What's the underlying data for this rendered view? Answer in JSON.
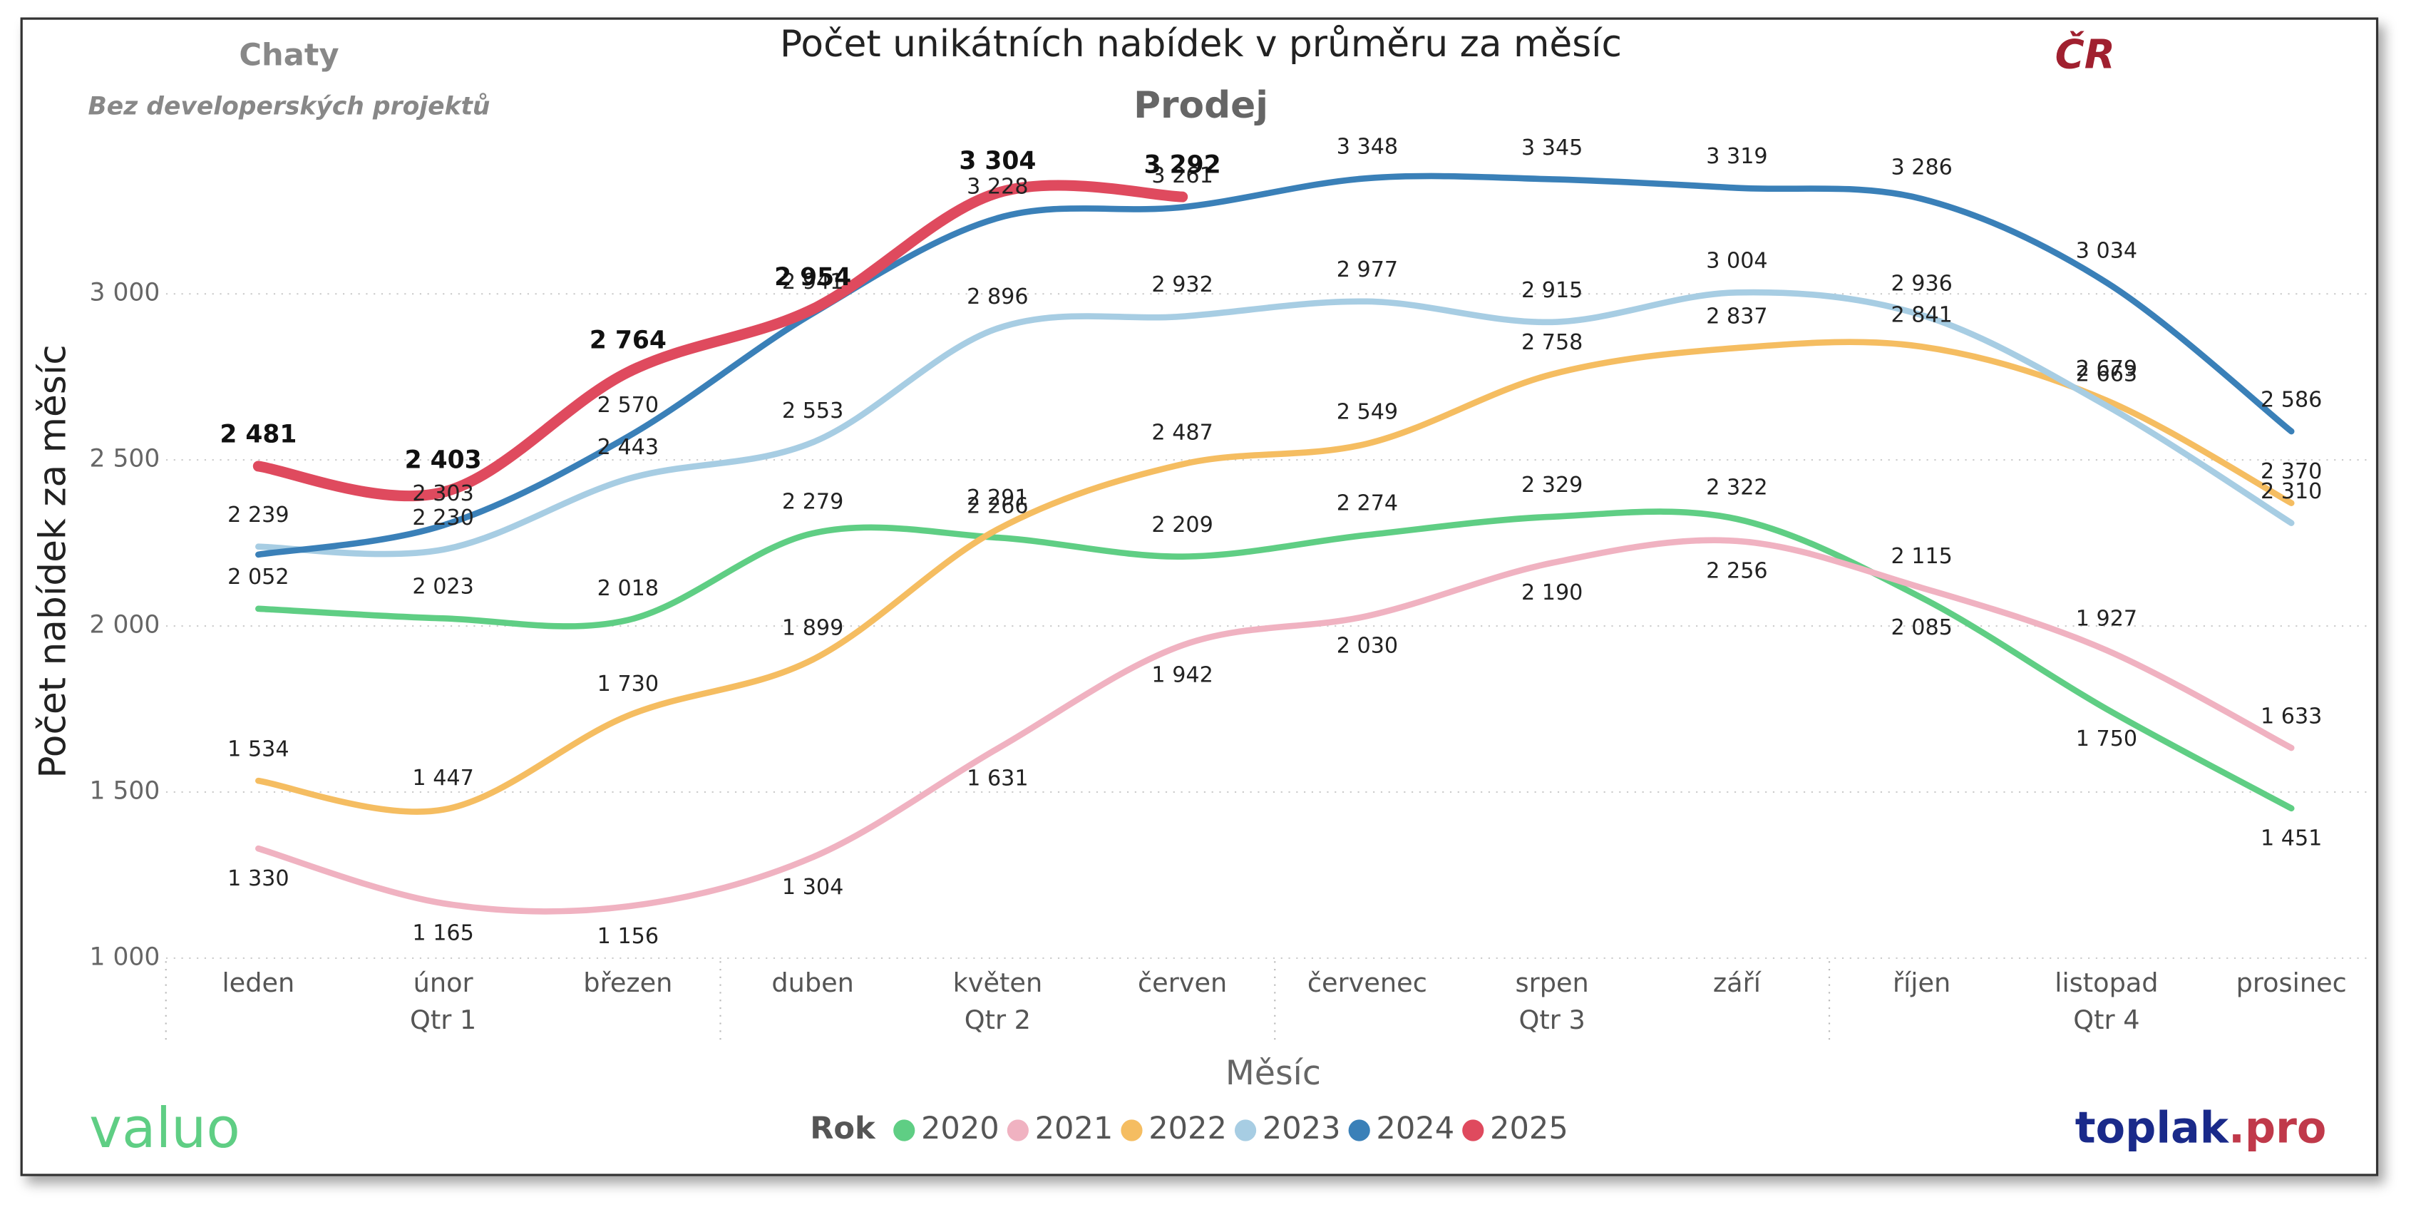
{
  "chart_data": {
    "type": "line",
    "title": "Počet unikátních nabídek v průměru za měsíc",
    "subtitle": "Prodej",
    "segment": "Chaty",
    "note": "Bez developerských projektů",
    "region": "ČR",
    "ylabel": "Počet nabídek za měsíc",
    "xlabel": "Měsíc",
    "legend_title": "Rok",
    "brand": {
      "left": "valuo",
      "right_1": "toplak",
      "right_2": ".pro"
    },
    "categories": [
      "leden",
      "únor",
      "březen",
      "duben",
      "květen",
      "červen",
      "červenec",
      "srpen",
      "září",
      "říjen",
      "listopad",
      "prosinec"
    ],
    "quarters": [
      "Qtr 1",
      "Qtr 2",
      "Qtr 3",
      "Qtr 4"
    ],
    "ylim": [
      1000,
      3500
    ],
    "yticks": [
      {
        "value": 1000,
        "label": "1 000"
      },
      {
        "value": 1500,
        "label": "1 500"
      },
      {
        "value": 2000,
        "label": "2 000"
      },
      {
        "value": 2500,
        "label": "2 500"
      },
      {
        "value": 3000,
        "label": "3 000"
      }
    ],
    "grid": true,
    "series": [
      {
        "name": "2020",
        "color": "#5fce84",
        "values": [
          2052,
          2023,
          2018,
          2279,
          2266,
          2209,
          2274,
          2329,
          2322,
          2085,
          1750,
          1451
        ],
        "value_labels": [
          "2 052",
          "2 023",
          "2 018",
          "2 279",
          "2 266",
          "2 209",
          "2 274",
          "2 329",
          "2 322",
          "2 085",
          "1 750",
          "1 451"
        ]
      },
      {
        "name": "2021",
        "color": "#f0b2c1",
        "values": [
          1330,
          1165,
          1156,
          1304,
          1631,
          1942,
          2030,
          2190,
          2256,
          2115,
          1927,
          1633
        ],
        "value_labels": [
          "1 330",
          "1 165",
          "1 156",
          "1 304",
          "1 631",
          "1 942",
          "2 030",
          "2 190",
          "2 256",
          "2 115",
          "1 927",
          "1 633"
        ]
      },
      {
        "name": "2022",
        "color": "#f5bd61",
        "values": [
          1534,
          1447,
          1730,
          1899,
          2291,
          2487,
          2549,
          2758,
          2837,
          2841,
          2679,
          2370
        ],
        "value_labels": [
          "1 534",
          "1 447",
          "1 730",
          "1 899",
          "2 291",
          "2 487",
          "2 549",
          "2 758",
          "2 837",
          "2 841",
          "2 679",
          "2 370"
        ]
      },
      {
        "name": "2023",
        "color": "#a7cde3",
        "values": [
          2239,
          2230,
          2443,
          2553,
          2896,
          2932,
          2977,
          2915,
          3004,
          2936,
          2663,
          2310
        ],
        "value_labels": [
          "2 239",
          "2 230",
          "2 443",
          "2 553",
          "2 896",
          "2 932",
          "2 977",
          "2 915",
          "3 004",
          "2 936",
          "2 663",
          "2 310"
        ]
      },
      {
        "name": "2024",
        "color": "#3a80b8",
        "values": [
          2215,
          2303,
          2570,
          2941,
          3228,
          3261,
          3348,
          3345,
          3319,
          3286,
          3034,
          2586
        ],
        "value_labels": [
          null,
          "2 303",
          "2 570",
          "2 941",
          "3 228",
          "3 261",
          "3 348",
          "3 345",
          "3 319",
          "3 286",
          "3 034",
          "2 586"
        ]
      },
      {
        "name": "2025",
        "color": "#df4a5e",
        "values": [
          2481,
          2403,
          2764,
          2954,
          3304,
          3292,
          null,
          null,
          null,
          null,
          null,
          null
        ],
        "value_labels": [
          "2 481",
          "2 403",
          "2 764",
          "2 954",
          "3 304",
          "3 292",
          null,
          null,
          null,
          null,
          null,
          null
        ]
      }
    ]
  }
}
